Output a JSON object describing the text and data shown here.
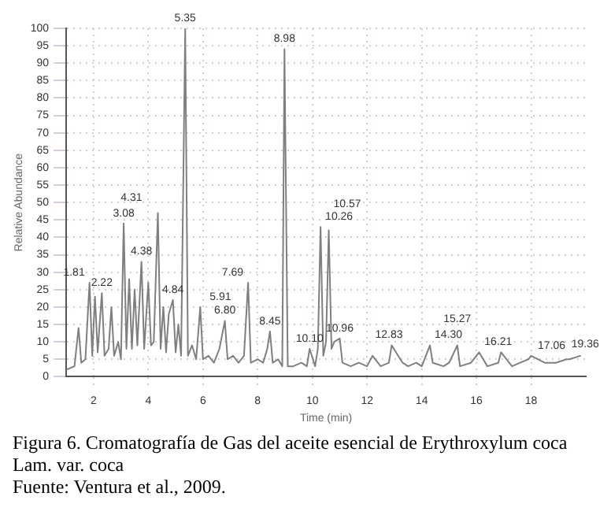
{
  "chart_data": {
    "type": "line",
    "title": "Figura 6. Cromatografía de Gas del aceite esencial de Erythroxylum coca Lam. var. coca",
    "xlabel": "Time (min)",
    "ylabel": "Relative Abundance",
    "x": [
      1.0,
      1.3,
      1.45,
      1.55,
      1.7,
      1.85,
      1.95,
      2.05,
      2.15,
      2.3,
      2.4,
      2.55,
      2.65,
      2.75,
      2.9,
      3.0,
      3.1,
      3.2,
      3.3,
      3.4,
      3.5,
      3.6,
      3.75,
      3.85,
      4.0,
      4.1,
      4.2,
      4.35,
      4.45,
      4.55,
      4.65,
      4.75,
      4.9,
      5.0,
      5.1,
      5.2,
      5.35,
      5.45,
      5.6,
      5.75,
      5.9,
      6.0,
      6.2,
      6.4,
      6.6,
      6.8,
      6.9,
      7.1,
      7.3,
      7.5,
      7.65,
      7.75,
      8.0,
      8.2,
      8.35,
      8.45,
      8.55,
      8.75,
      8.9,
      8.98,
      9.1,
      9.3,
      9.6,
      9.8,
      9.9,
      10.1,
      10.2,
      10.3,
      10.4,
      10.5,
      10.6,
      10.7,
      10.8,
      11.0,
      11.1,
      11.4,
      11.7,
      12.0,
      12.2,
      12.5,
      12.8,
      12.9,
      13.3,
      13.5,
      13.8,
      14.0,
      14.3,
      14.4,
      14.8,
      15.0,
      15.3,
      15.4,
      15.8,
      16.1,
      16.4,
      16.8,
      16.9,
      17.3,
      17.6,
      17.9,
      18.0,
      18.5,
      18.9,
      19.3,
      19.4,
      19.8
    ],
    "series": [
      {
        "color": "#7f7f7f",
        "values": [
          2,
          3,
          14,
          4,
          5,
          27,
          6,
          23,
          7,
          24,
          6,
          8,
          20,
          6,
          10,
          5,
          44,
          8,
          28,
          8,
          25,
          9,
          33,
          8,
          27,
          9,
          10,
          47,
          8,
          20,
          7,
          18,
          22,
          7,
          15,
          6,
          100,
          6,
          9,
          5,
          20,
          5,
          6,
          4,
          8,
          16,
          5,
          6,
          4,
          6,
          27,
          4,
          5,
          4,
          8,
          13,
          4,
          5,
          3,
          94,
          3,
          3,
          4,
          3,
          8,
          3,
          8,
          43,
          6,
          10,
          42,
          8,
          10,
          11,
          4,
          3,
          4,
          3,
          6,
          3,
          4,
          9,
          4,
          3,
          4,
          3,
          9,
          4,
          3,
          4,
          9,
          3,
          4,
          7,
          3,
          4,
          7,
          3,
          4,
          5,
          6,
          4,
          4,
          5,
          5,
          6
        ]
      }
    ],
    "xlim": [
      1,
      20
    ],
    "xticks": [
      2,
      4,
      6,
      8,
      10,
      12,
      14,
      16,
      18
    ],
    "ylim": [
      0,
      100
    ],
    "yticks": [
      0,
      5,
      10,
      15,
      20,
      25,
      30,
      35,
      40,
      45,
      50,
      55,
      60,
      65,
      70,
      75,
      80,
      85,
      90,
      95,
      100
    ],
    "grid": true,
    "marker": "none",
    "line_style": "solid",
    "legend": false,
    "annotations": [
      {
        "text": "1.81",
        "x": 1.85,
        "y": 27
      },
      {
        "text": "2.22",
        "x": 2.3,
        "y": 24
      },
      {
        "text": "3.08",
        "x": 3.1,
        "y": 44
      },
      {
        "text": "4.38",
        "x": 3.75,
        "y": 33
      },
      {
        "text": "4.31",
        "x": 4.35,
        "y": 47
      },
      {
        "text": "4.84",
        "x": 4.9,
        "y": 22
      },
      {
        "text": "5.35",
        "x": 5.35,
        "y": 100
      },
      {
        "text": "5.91",
        "x": 5.9,
        "y": 20
      },
      {
        "text": "6.80",
        "x": 6.8,
        "y": 16
      },
      {
        "text": "7.69",
        "x": 7.65,
        "y": 27
      },
      {
        "text": "8.45",
        "x": 8.45,
        "y": 13
      },
      {
        "text": "8.98",
        "x": 8.98,
        "y": 94
      },
      {
        "text": "10.10",
        "x": 9.9,
        "y": 8
      },
      {
        "text": "10.26",
        "x": 10.3,
        "y": 43
      },
      {
        "text": "10.57",
        "x": 10.6,
        "y": 42
      },
      {
        "text": "10.96",
        "x": 11.0,
        "y": 11
      },
      {
        "text": "12.83",
        "x": 12.8,
        "y": 9
      },
      {
        "text": "14.30",
        "x": 14.3,
        "y": 9
      },
      {
        "text": "15.27",
        "x": 15.3,
        "y": 9
      },
      {
        "text": "16.21",
        "x": 16.8,
        "y": 7
      },
      {
        "text": "17.06",
        "x": 17.9,
        "y": 6
      },
      {
        "text": "19.36",
        "x": 19.3,
        "y": 5
      },
      "Fuente: Ventura et al., 2009."
    ]
  }
}
